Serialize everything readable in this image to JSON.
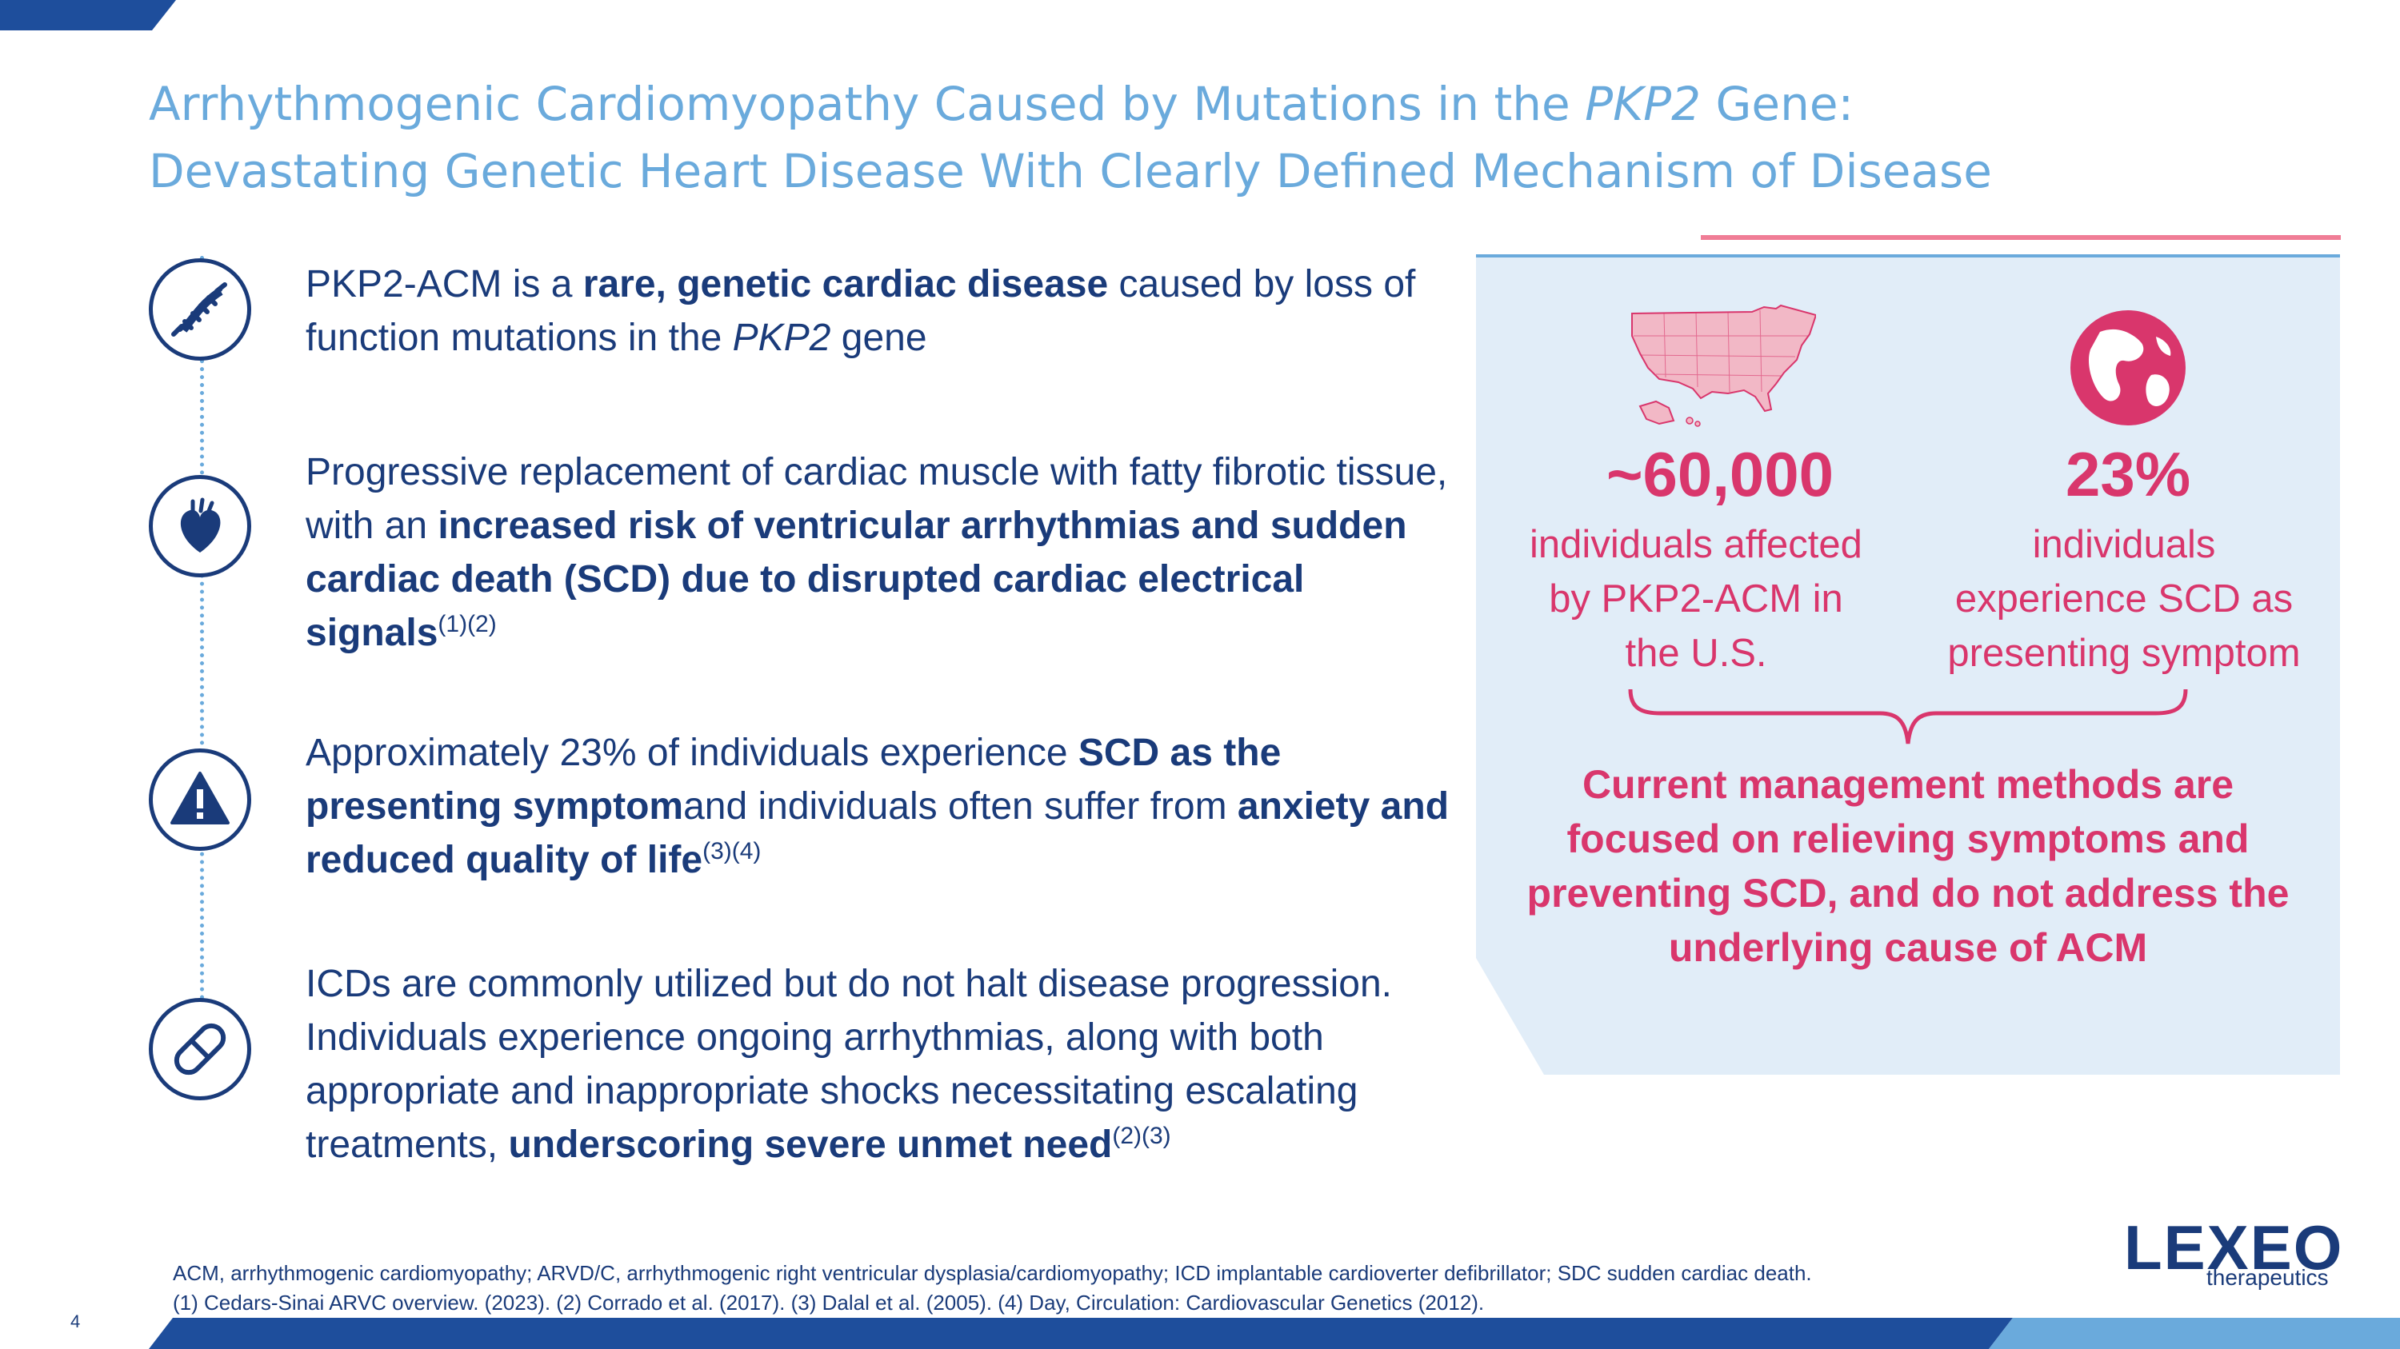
{
  "title": {
    "line1_pre": "Arrhythmogenic Cardiomyopathy Caused by Mutations in the ",
    "line1_italic": "PKP2",
    "line1_post": " Gene:",
    "line2": "Devastating Genetic Heart Disease With Clearly Defined Mechanism of Disease"
  },
  "bullets": [
    {
      "t1": "PKP2-ACM is a ",
      "b1": "rare, genetic cardiac disease",
      "t2": " caused by loss of function mutations in the ",
      "i1": "PKP2",
      "t3": " gene"
    },
    {
      "t1": "Progressive replacement of cardiac muscle with fatty fibrotic tissue, with an ",
      "b1": "increased risk of ventricular arrhythmias and sudden cardiac death (SCD) due to disrupted cardiac electrical signals",
      "sup": "(1)(2)"
    },
    {
      "t1": "Approximately 23% of individuals experience ",
      "b1": "SCD as the presenting symptom",
      "t2": "and individuals often suffer from ",
      "b2": "anxiety and reduced quality of life",
      "sup": "(3)(4)"
    },
    {
      "t1": "ICDs are commonly utilized but do not halt disease progression. Individuals experience ongoing arrhythmias, along with both appropriate and inappropriate shocks necessitating escalating treatments, ",
      "b1": "underscoring severe unmet need",
      "sup": "(2)(3)"
    }
  ],
  "stats": [
    {
      "value": "~60,000",
      "desc_lines": [
        "individuals affected",
        "by PKP2-ACM in",
        "the U.S."
      ]
    },
    {
      "value": "23%",
      "desc_lines": [
        "individuals",
        "experience SCD as",
        "presenting symptom"
      ]
    }
  ],
  "management_lines": [
    "Current management methods are",
    "focused on relieving symptoms and",
    "preventing SCD, and do not address the",
    "underlying cause of ACM"
  ],
  "footnotes": [
    "ACM, arrhythmogenic cardiomyopathy; ARVD/C, arrhythmogenic right ventricular dysplasia/cardiomyopathy; ICD implantable cardioverter defibrillator; SDC sudden cardiac death.",
    "(1) Cedars-Sinai ARVC overview. (2023). (2) Corrado et al. (2017). (3) Dalal et al. (2005). (4) Day, Circulation: Cardiovascular Genetics (2012)."
  ],
  "page_number": "4",
  "logo": {
    "main": "LEXEO",
    "sub": "therapeutics"
  },
  "colors": {
    "navy": "#1a3b7a",
    "light_blue": "#6aaadc",
    "pink": "#d9366c",
    "panel_bg": "#e1edf8"
  }
}
